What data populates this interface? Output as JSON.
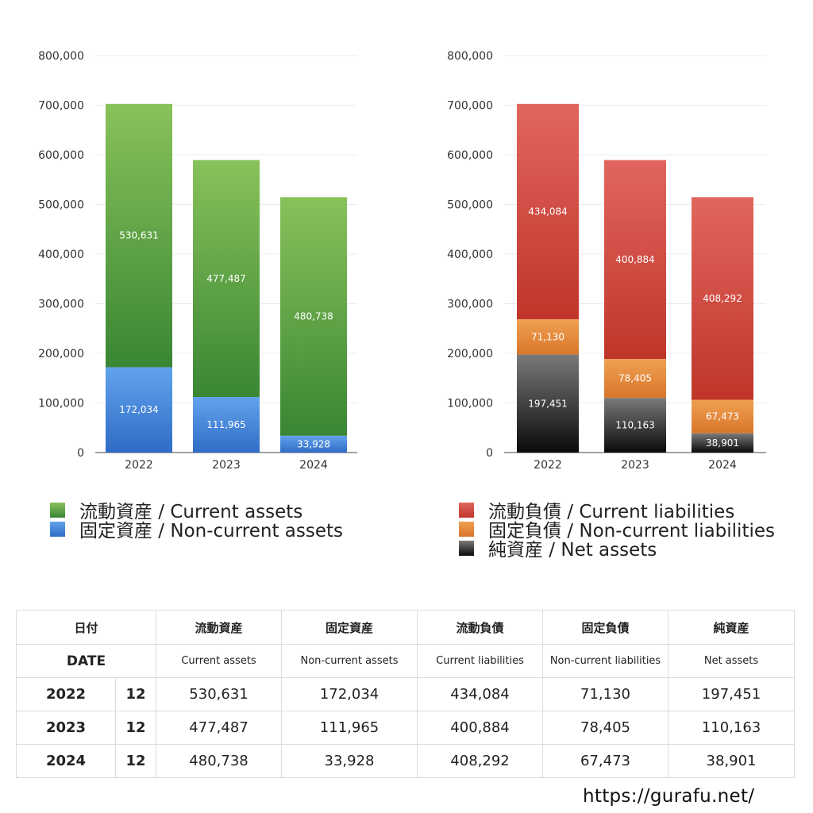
{
  "chart_data": [
    {
      "type": "bar",
      "stacked": true,
      "title": "",
      "xlabel": "",
      "ylabel": "",
      "categories": [
        "2022",
        "2023",
        "2024"
      ],
      "ylim": [
        0,
        800000
      ],
      "yticks": [
        0,
        100000,
        200000,
        300000,
        400000,
        500000,
        600000,
        700000,
        800000
      ],
      "ytick_labels": [
        "0",
        "100,000",
        "200,000",
        "300,000",
        "400,000",
        "500,000",
        "600,000",
        "700,000",
        "800,000"
      ],
      "grid": true,
      "legend_position": "bottom",
      "series": [
        {
          "name": "固定資産 / Non-current assets",
          "values": [
            172034,
            111965,
            33928
          ],
          "labels": [
            "172,034",
            "111,965",
            "33,928"
          ],
          "color_top": "#62a3ec",
          "color_bottom": "#2f6cc6"
        },
        {
          "name": "流動資産 / Current assets",
          "values": [
            530631,
            477487,
            480738
          ],
          "labels": [
            "530,631",
            "477,487",
            "480,738"
          ],
          "color_top": "#88c25a",
          "color_bottom": "#3a8634"
        }
      ],
      "legend_order": [
        1,
        0
      ]
    },
    {
      "type": "bar",
      "stacked": true,
      "title": "",
      "xlabel": "",
      "ylabel": "",
      "categories": [
        "2022",
        "2023",
        "2024"
      ],
      "ylim": [
        0,
        800000
      ],
      "yticks": [
        0,
        100000,
        200000,
        300000,
        400000,
        500000,
        600000,
        700000,
        800000
      ],
      "ytick_labels": [
        "0",
        "100,000",
        "200,000",
        "300,000",
        "400,000",
        "500,000",
        "600,000",
        "700,000",
        "800,000"
      ],
      "grid": true,
      "legend_position": "bottom",
      "series": [
        {
          "name": "純資産 / Net assets",
          "values": [
            197451,
            110163,
            38901
          ],
          "labels": [
            "197,451",
            "110,163",
            "38,901"
          ],
          "color_top": "#7a7a7a",
          "color_bottom": "#0a0a0a"
        },
        {
          "name": "固定負債 / Non-current liabilities",
          "values": [
            71130,
            78405,
            67473
          ],
          "labels": [
            "71,130",
            "78,405",
            "67,473"
          ],
          "color_top": "#efa052",
          "color_bottom": "#d9762a"
        },
        {
          "name": "流動負債 / Current liabilities",
          "values": [
            434084,
            400884,
            408292
          ],
          "labels": [
            "434,084",
            "400,884",
            "408,292"
          ],
          "color_top": "#e0665e",
          "color_bottom": "#c0352a"
        }
      ],
      "legend_order": [
        2,
        1,
        0
      ]
    }
  ],
  "table": {
    "date_jp": "日付",
    "date_en": "DATE",
    "columns": [
      {
        "jp": "流動資産",
        "en": "Current assets"
      },
      {
        "jp": "固定資産",
        "en": "Non-current assets"
      },
      {
        "jp": "流動負債",
        "en": "Current liabilities"
      },
      {
        "jp": "固定負債",
        "en": "Non-current liabilities"
      },
      {
        "jp": "純資産",
        "en": "Net assets"
      }
    ],
    "rows": [
      {
        "year": "2022",
        "month": "12",
        "values": [
          "530,631",
          "172,034",
          "434,084",
          "71,130",
          "197,451"
        ]
      },
      {
        "year": "2023",
        "month": "12",
        "values": [
          "477,487",
          "111,965",
          "400,884",
          "78,405",
          "110,163"
        ]
      },
      {
        "year": "2024",
        "month": "12",
        "values": [
          "480,738",
          "33,928",
          "408,292",
          "67,473",
          "38,901"
        ]
      }
    ]
  },
  "footer": {
    "url": "https://gurafu.net/"
  }
}
